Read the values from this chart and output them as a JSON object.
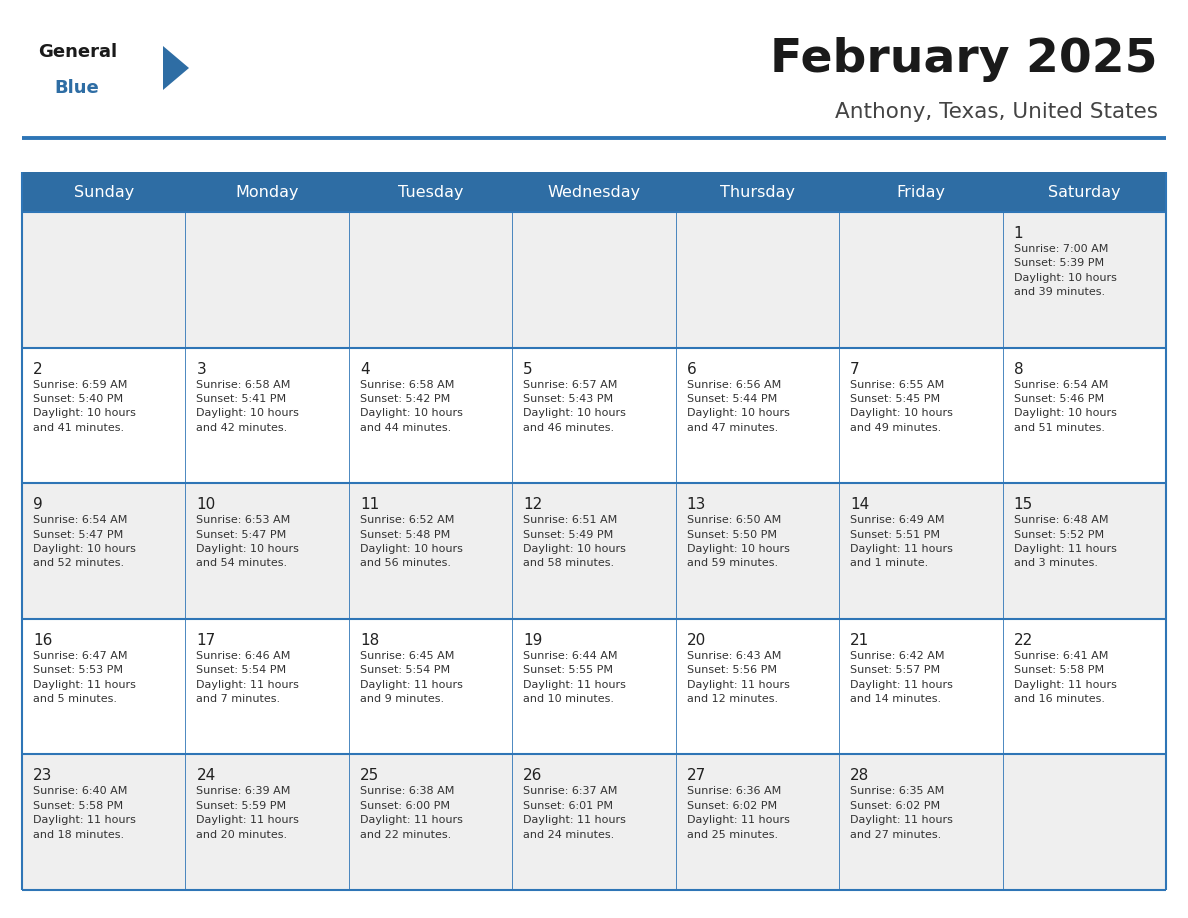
{
  "title": "February 2025",
  "subtitle": "Anthony, Texas, United States",
  "header_bg": "#2E6DA4",
  "header_text_color": "#FFFFFF",
  "cell_bg_odd": "#EFEFEF",
  "cell_bg_even": "#FFFFFF",
  "border_color": "#2E75B6",
  "text_color": "#333333",
  "day_number_color": "#222222",
  "day_headers": [
    "Sunday",
    "Monday",
    "Tuesday",
    "Wednesday",
    "Thursday",
    "Friday",
    "Saturday"
  ],
  "logo_general_color": "#1a1a1a",
  "logo_blue_color": "#2E6DA4",
  "title_color": "#1a1a1a",
  "subtitle_color": "#444444",
  "calendar": [
    [
      {
        "day": "",
        "info": ""
      },
      {
        "day": "",
        "info": ""
      },
      {
        "day": "",
        "info": ""
      },
      {
        "day": "",
        "info": ""
      },
      {
        "day": "",
        "info": ""
      },
      {
        "day": "",
        "info": ""
      },
      {
        "day": "1",
        "info": "Sunrise: 7:00 AM\nSunset: 5:39 PM\nDaylight: 10 hours\nand 39 minutes."
      }
    ],
    [
      {
        "day": "2",
        "info": "Sunrise: 6:59 AM\nSunset: 5:40 PM\nDaylight: 10 hours\nand 41 minutes."
      },
      {
        "day": "3",
        "info": "Sunrise: 6:58 AM\nSunset: 5:41 PM\nDaylight: 10 hours\nand 42 minutes."
      },
      {
        "day": "4",
        "info": "Sunrise: 6:58 AM\nSunset: 5:42 PM\nDaylight: 10 hours\nand 44 minutes."
      },
      {
        "day": "5",
        "info": "Sunrise: 6:57 AM\nSunset: 5:43 PM\nDaylight: 10 hours\nand 46 minutes."
      },
      {
        "day": "6",
        "info": "Sunrise: 6:56 AM\nSunset: 5:44 PM\nDaylight: 10 hours\nand 47 minutes."
      },
      {
        "day": "7",
        "info": "Sunrise: 6:55 AM\nSunset: 5:45 PM\nDaylight: 10 hours\nand 49 minutes."
      },
      {
        "day": "8",
        "info": "Sunrise: 6:54 AM\nSunset: 5:46 PM\nDaylight: 10 hours\nand 51 minutes."
      }
    ],
    [
      {
        "day": "9",
        "info": "Sunrise: 6:54 AM\nSunset: 5:47 PM\nDaylight: 10 hours\nand 52 minutes."
      },
      {
        "day": "10",
        "info": "Sunrise: 6:53 AM\nSunset: 5:47 PM\nDaylight: 10 hours\nand 54 minutes."
      },
      {
        "day": "11",
        "info": "Sunrise: 6:52 AM\nSunset: 5:48 PM\nDaylight: 10 hours\nand 56 minutes."
      },
      {
        "day": "12",
        "info": "Sunrise: 6:51 AM\nSunset: 5:49 PM\nDaylight: 10 hours\nand 58 minutes."
      },
      {
        "day": "13",
        "info": "Sunrise: 6:50 AM\nSunset: 5:50 PM\nDaylight: 10 hours\nand 59 minutes."
      },
      {
        "day": "14",
        "info": "Sunrise: 6:49 AM\nSunset: 5:51 PM\nDaylight: 11 hours\nand 1 minute."
      },
      {
        "day": "15",
        "info": "Sunrise: 6:48 AM\nSunset: 5:52 PM\nDaylight: 11 hours\nand 3 minutes."
      }
    ],
    [
      {
        "day": "16",
        "info": "Sunrise: 6:47 AM\nSunset: 5:53 PM\nDaylight: 11 hours\nand 5 minutes."
      },
      {
        "day": "17",
        "info": "Sunrise: 6:46 AM\nSunset: 5:54 PM\nDaylight: 11 hours\nand 7 minutes."
      },
      {
        "day": "18",
        "info": "Sunrise: 6:45 AM\nSunset: 5:54 PM\nDaylight: 11 hours\nand 9 minutes."
      },
      {
        "day": "19",
        "info": "Sunrise: 6:44 AM\nSunset: 5:55 PM\nDaylight: 11 hours\nand 10 minutes."
      },
      {
        "day": "20",
        "info": "Sunrise: 6:43 AM\nSunset: 5:56 PM\nDaylight: 11 hours\nand 12 minutes."
      },
      {
        "day": "21",
        "info": "Sunrise: 6:42 AM\nSunset: 5:57 PM\nDaylight: 11 hours\nand 14 minutes."
      },
      {
        "day": "22",
        "info": "Sunrise: 6:41 AM\nSunset: 5:58 PM\nDaylight: 11 hours\nand 16 minutes."
      }
    ],
    [
      {
        "day": "23",
        "info": "Sunrise: 6:40 AM\nSunset: 5:58 PM\nDaylight: 11 hours\nand 18 minutes."
      },
      {
        "day": "24",
        "info": "Sunrise: 6:39 AM\nSunset: 5:59 PM\nDaylight: 11 hours\nand 20 minutes."
      },
      {
        "day": "25",
        "info": "Sunrise: 6:38 AM\nSunset: 6:00 PM\nDaylight: 11 hours\nand 22 minutes."
      },
      {
        "day": "26",
        "info": "Sunrise: 6:37 AM\nSunset: 6:01 PM\nDaylight: 11 hours\nand 24 minutes."
      },
      {
        "day": "27",
        "info": "Sunrise: 6:36 AM\nSunset: 6:02 PM\nDaylight: 11 hours\nand 25 minutes."
      },
      {
        "day": "28",
        "info": "Sunrise: 6:35 AM\nSunset: 6:02 PM\nDaylight: 11 hours\nand 27 minutes."
      },
      {
        "day": "",
        "info": ""
      }
    ]
  ]
}
